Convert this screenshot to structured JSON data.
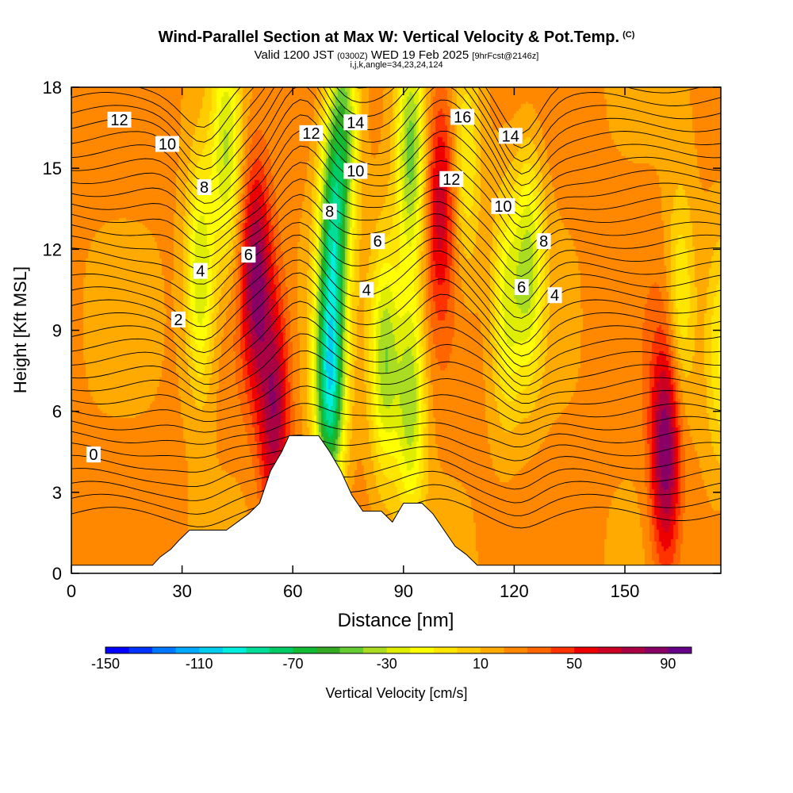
{
  "header": {
    "title": "Wind-Parallel Section at Max W: Vertical Velocity & Pot.Temp.",
    "title_mark": "(C)",
    "subtitle_valid": "Valid 1200 JST",
    "subtitle_utc": "(0300Z)",
    "subtitle_date": "WED 19 Feb 2025",
    "subtitle_fcst": "[9hrFcst@2146z]",
    "params": "i,j,k,angle=34,23,24,124"
  },
  "chart_data": {
    "type": "heatmap",
    "xlabel": "Distance [nm]",
    "ylabel": "Height [Kft MSL]",
    "xlim": [
      0,
      176
    ],
    "ylim": [
      0,
      18
    ],
    "x_ticks": [
      "0",
      "30",
      "60",
      "90",
      "120",
      "150"
    ],
    "y_ticks": [
      "0",
      "3",
      "6",
      "9",
      "12",
      "15",
      "18"
    ],
    "terrain": [
      [
        0,
        0.3
      ],
      [
        22,
        0.3
      ],
      [
        24,
        0.6
      ],
      [
        27,
        0.9
      ],
      [
        29,
        1.2
      ],
      [
        32,
        1.6
      ],
      [
        42,
        1.6
      ],
      [
        45,
        1.9
      ],
      [
        48,
        2.2
      ],
      [
        51,
        2.6
      ],
      [
        54,
        3.8
      ],
      [
        57,
        4.5
      ],
      [
        59,
        5.1
      ],
      [
        67,
        5.1
      ],
      [
        70,
        4.5
      ],
      [
        73,
        3.8
      ],
      [
        76,
        2.9
      ],
      [
        79,
        2.3
      ],
      [
        84,
        2.3
      ],
      [
        87,
        1.9
      ],
      [
        90,
        2.6
      ],
      [
        95,
        2.6
      ],
      [
        98,
        2.2
      ],
      [
        101,
        1.6
      ],
      [
        104,
        1.0
      ],
      [
        107,
        0.7
      ],
      [
        110,
        0.3
      ],
      [
        176,
        0.3
      ]
    ],
    "velocity_features": [
      {
        "x": 35,
        "z": 11.0,
        "w": -55
      },
      {
        "x": 42,
        "z": 15.5,
        "w": -50
      },
      {
        "x": 50,
        "z": 11.0,
        "w": 60
      },
      {
        "x": 55,
        "z": 6.0,
        "w": 55
      },
      {
        "x": 70,
        "z": 7.0,
        "w": -110
      },
      {
        "x": 71,
        "z": 13.0,
        "w": -80
      },
      {
        "x": 74,
        "z": 17.0,
        "w": -60
      },
      {
        "x": 85,
        "z": 8.0,
        "w": -60
      },
      {
        "x": 92,
        "z": 6.5,
        "w": -60
      },
      {
        "x": 92,
        "z": 15.5,
        "w": -65
      },
      {
        "x": 100,
        "z": 14.0,
        "w": 45
      },
      {
        "x": 107,
        "z": 15.0,
        "w": -30
      },
      {
        "x": 118,
        "z": 10.0,
        "w": -40
      },
      {
        "x": 124,
        "z": 11.5,
        "w": -50
      },
      {
        "x": 161,
        "z": 4.5,
        "w": 70
      },
      {
        "x": 165,
        "z": 10.0,
        "w": -35
      },
      {
        "x": 176,
        "z": 8.0,
        "w": -30
      }
    ],
    "theta_labels": [
      {
        "text": "0",
        "x": 6,
        "z": 4.4
      },
      {
        "text": "2",
        "x": 29,
        "z": 9.4
      },
      {
        "text": "4",
        "x": 35,
        "z": 11.2
      },
      {
        "text": "4",
        "x": 80,
        "z": 10.5
      },
      {
        "text": "4",
        "x": 131,
        "z": 10.3
      },
      {
        "text": "6",
        "x": 48,
        "z": 11.8
      },
      {
        "text": "6",
        "x": 83,
        "z": 12.3
      },
      {
        "text": "6",
        "x": 122,
        "z": 10.6
      },
      {
        "text": "8",
        "x": 36,
        "z": 14.3
      },
      {
        "text": "8",
        "x": 70,
        "z": 13.4
      },
      {
        "text": "8",
        "x": 128,
        "z": 12.3
      },
      {
        "text": "10",
        "x": 26,
        "z": 15.9
      },
      {
        "text": "10",
        "x": 77,
        "z": 14.9
      },
      {
        "text": "10",
        "x": 117,
        "z": 13.6
      },
      {
        "text": "12",
        "x": 13,
        "z": 16.8
      },
      {
        "text": "12",
        "x": 65,
        "z": 16.3
      },
      {
        "text": "12",
        "x": 103,
        "z": 14.6
      },
      {
        "text": "14",
        "x": 77,
        "z": 16.7
      },
      {
        "text": "14",
        "x": 119,
        "z": 16.2
      },
      {
        "text": "16",
        "x": 106,
        "z": 16.9
      }
    ],
    "colorbar": {
      "label": "Vertical Velocity [cm/s]",
      "tick_labels": [
        "-150",
        "-110",
        "-70",
        "-30",
        "10",
        "50",
        "90"
      ],
      "colors": [
        "#0000ff",
        "#0033ff",
        "#0077ff",
        "#00aaff",
        "#00ccee",
        "#00eedd",
        "#00dd99",
        "#00cc66",
        "#11bb33",
        "#33aa22",
        "#66cc33",
        "#aadd22",
        "#dfee00",
        "#ffff00",
        "#ffe600",
        "#ffcc00",
        "#ffaa00",
        "#ff8800",
        "#ff6600",
        "#ff3300",
        "#ee0000",
        "#cc0022",
        "#aa0044",
        "#880066",
        "#660088"
      ]
    }
  }
}
